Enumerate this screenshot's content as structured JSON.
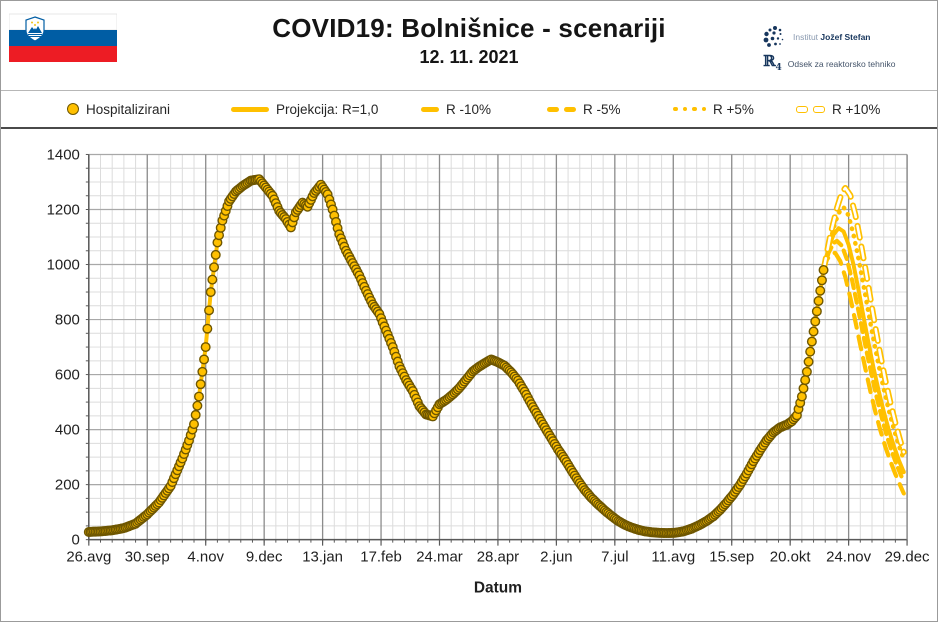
{
  "header": {
    "title": "COVID19: Bolnišnice - scenariji",
    "date": "12. 11. 2021",
    "logo": {
      "institute_light": "Institut",
      "institute_bold": "Jožef Stefan",
      "mark_r": "ℝ",
      "mark_sub": "4",
      "department": "Odsek za reaktorsko tehniko"
    },
    "flag_country": "Slovenia"
  },
  "legend": [
    {
      "label": "Hospitalizirani",
      "swatch": "circle"
    },
    {
      "label": "Projekcija: R=1,0",
      "swatch": "solid"
    },
    {
      "label": "R -10%",
      "swatch": "dash-long"
    },
    {
      "label": "R -5%",
      "swatch": "dash"
    },
    {
      "label": "R +5%",
      "swatch": "dot"
    },
    {
      "label": "R +10%",
      "swatch": "hollow-dash"
    }
  ],
  "colors": {
    "accent": "#FFC000",
    "marker_outline": "#6e5600",
    "grid_minor": "#dcdcdc",
    "grid_major_h": "#a8a8a8",
    "grid_major_v": "#8c8c8c",
    "axis": "#595959",
    "text": "#1f1f1f",
    "flag_blue": "#005da4",
    "flag_red": "#ed1c24",
    "logo_navy": "#17365d"
  },
  "chart_data": {
    "type": "scatter",
    "title": "COVID19: Bolnišnice - scenariji",
    "subtitle": "12. 11. 2021",
    "xlabel": "Datum",
    "ylabel": "",
    "ylim": [
      0,
      1400
    ],
    "y_major_step": 200,
    "y_minor_step": 50,
    "xlim_days": [
      0,
      490
    ],
    "x_minor_step_days": 7,
    "x_tick_days": [
      0,
      35,
      70,
      105,
      140,
      175,
      210,
      245,
      280,
      315,
      350,
      385,
      420,
      455,
      490
    ],
    "x_tick_labels": [
      "26.avg",
      "30.sep",
      "4.nov",
      "9.dec",
      "13.jan",
      "17.feb",
      "24.mar",
      "28.apr",
      "2.jun",
      "7.jul",
      "11.avg",
      "15.sep",
      "20.okt",
      "24.nov",
      "29.dec"
    ],
    "grid": true,
    "legend_position": "top",
    "series": [
      {
        "name": "Hospitalizirani",
        "style": "markers",
        "color": "#FFC000",
        "points": [
          [
            0,
            28
          ],
          [
            7,
            30
          ],
          [
            14,
            34
          ],
          [
            21,
            42
          ],
          [
            28,
            58
          ],
          [
            35,
            92
          ],
          [
            42,
            135
          ],
          [
            49,
            195
          ],
          [
            56,
            295
          ],
          [
            60,
            360
          ],
          [
            63,
            420
          ],
          [
            66,
            520
          ],
          [
            70,
            700
          ],
          [
            73,
            900
          ],
          [
            77,
            1080
          ],
          [
            80,
            1160
          ],
          [
            84,
            1230
          ],
          [
            88,
            1265
          ],
          [
            92,
            1285
          ],
          [
            97,
            1305
          ],
          [
            102,
            1310
          ],
          [
            106,
            1280
          ],
          [
            110,
            1250
          ],
          [
            114,
            1195
          ],
          [
            118,
            1165
          ],
          [
            121,
            1135
          ],
          [
            124,
            1190
          ],
          [
            128,
            1225
          ],
          [
            131,
            1210
          ],
          [
            135,
            1260
          ],
          [
            139,
            1290
          ],
          [
            143,
            1255
          ],
          [
            146,
            1200
          ],
          [
            150,
            1110
          ],
          [
            154,
            1050
          ],
          [
            158,
            1005
          ],
          [
            162,
            960
          ],
          [
            166,
            905
          ],
          [
            170,
            855
          ],
          [
            174,
            820
          ],
          [
            178,
            760
          ],
          [
            182,
            700
          ],
          [
            186,
            630
          ],
          [
            190,
            580
          ],
          [
            194,
            540
          ],
          [
            198,
            485
          ],
          [
            202,
            455
          ],
          [
            206,
            448
          ],
          [
            210,
            492
          ],
          [
            214,
            508
          ],
          [
            218,
            528
          ],
          [
            222,
            552
          ],
          [
            226,
            582
          ],
          [
            230,
            612
          ],
          [
            234,
            630
          ],
          [
            238,
            645
          ],
          [
            241,
            655
          ],
          [
            245,
            645
          ],
          [
            249,
            632
          ],
          [
            253,
            608
          ],
          [
            257,
            578
          ],
          [
            261,
            538
          ],
          [
            265,
            492
          ],
          [
            269,
            450
          ],
          [
            273,
            408
          ],
          [
            277,
            368
          ],
          [
            281,
            328
          ],
          [
            285,
            292
          ],
          [
            289,
            252
          ],
          [
            293,
            214
          ],
          [
            297,
            180
          ],
          [
            301,
            152
          ],
          [
            305,
            128
          ],
          [
            309,
            106
          ],
          [
            313,
            86
          ],
          [
            317,
            68
          ],
          [
            321,
            54
          ],
          [
            325,
            44
          ],
          [
            329,
            36
          ],
          [
            333,
            30
          ],
          [
            337,
            27
          ],
          [
            341,
            25
          ],
          [
            346,
            24
          ],
          [
            351,
            25
          ],
          [
            356,
            30
          ],
          [
            361,
            40
          ],
          [
            366,
            54
          ],
          [
            370,
            68
          ],
          [
            374,
            85
          ],
          [
            378,
            108
          ],
          [
            382,
            135
          ],
          [
            386,
            165
          ],
          [
            390,
            200
          ],
          [
            394,
            240
          ],
          [
            398,
            285
          ],
          [
            402,
            325
          ],
          [
            406,
            362
          ],
          [
            410,
            390
          ],
          [
            414,
            408
          ],
          [
            418,
            418
          ],
          [
            421,
            430
          ],
          [
            424,
            452
          ],
          [
            427,
            520
          ],
          [
            430,
            610
          ],
          [
            433,
            720
          ],
          [
            436,
            830
          ],
          [
            438,
            905
          ],
          [
            440,
            980
          ]
        ]
      },
      {
        "name": "Projekcija: R=1,0",
        "style": "solid",
        "color": "#FFC000",
        "includes_history_fit": true,
        "points": [
          [
            440,
            980
          ],
          [
            443,
            1060
          ],
          [
            446,
            1110
          ],
          [
            449,
            1132
          ],
          [
            452,
            1120
          ],
          [
            455,
            1072
          ],
          [
            458,
            998
          ],
          [
            461,
            905
          ],
          [
            464,
            808
          ],
          [
            467,
            712
          ],
          [
            470,
            622
          ],
          [
            473,
            540
          ],
          [
            476,
            466
          ],
          [
            479,
            400
          ],
          [
            482,
            342
          ],
          [
            485,
            290
          ],
          [
            488,
            245
          ]
        ]
      },
      {
        "name": "R -10%",
        "style": "dash-long",
        "color": "#FFC000",
        "points": [
          [
            440,
            980
          ],
          [
            442,
            1018
          ],
          [
            445,
            1042
          ],
          [
            447,
            1042
          ],
          [
            450,
            1012
          ],
          [
            453,
            955
          ],
          [
            456,
            880
          ],
          [
            459,
            795
          ],
          [
            462,
            708
          ],
          [
            465,
            622
          ],
          [
            468,
            540
          ],
          [
            471,
            465
          ],
          [
            474,
            398
          ],
          [
            477,
            338
          ],
          [
            480,
            285
          ],
          [
            483,
            238
          ],
          [
            486,
            196
          ],
          [
            488,
            168
          ]
        ]
      },
      {
        "name": "R -5%",
        "style": "dash",
        "color": "#FFC000",
        "points": [
          [
            440,
            980
          ],
          [
            443,
            1042
          ],
          [
            446,
            1078
          ],
          [
            448,
            1086
          ],
          [
            451,
            1068
          ],
          [
            454,
            1018
          ],
          [
            457,
            945
          ],
          [
            460,
            858
          ],
          [
            463,
            768
          ],
          [
            466,
            678
          ],
          [
            469,
            592
          ],
          [
            472,
            512
          ],
          [
            475,
            440
          ],
          [
            478,
            375
          ],
          [
            481,
            318
          ],
          [
            484,
            268
          ],
          [
            487,
            224
          ],
          [
            488,
            210
          ]
        ]
      },
      {
        "name": "R +5%",
        "style": "dot",
        "color": "#FFC000",
        "points": [
          [
            440,
            980
          ],
          [
            444,
            1085
          ],
          [
            447,
            1155
          ],
          [
            450,
            1198
          ],
          [
            452,
            1208
          ],
          [
            455,
            1178
          ],
          [
            458,
            1108
          ],
          [
            461,
            1018
          ],
          [
            464,
            922
          ],
          [
            467,
            822
          ],
          [
            470,
            725
          ],
          [
            473,
            633
          ],
          [
            476,
            548
          ],
          [
            479,
            472
          ],
          [
            482,
            404
          ],
          [
            485,
            344
          ],
          [
            488,
            292
          ]
        ]
      },
      {
        "name": "R +10%",
        "style": "hollow-dash",
        "color": "#FFC000",
        "points": [
          [
            440,
            980
          ],
          [
            444,
            1105
          ],
          [
            448,
            1205
          ],
          [
            451,
            1262
          ],
          [
            453,
            1278
          ],
          [
            456,
            1252
          ],
          [
            459,
            1182
          ],
          [
            462,
            1088
          ],
          [
            465,
            985
          ],
          [
            468,
            878
          ],
          [
            471,
            772
          ],
          [
            474,
            672
          ],
          [
            477,
            580
          ],
          [
            480,
            498
          ],
          [
            483,
            424
          ],
          [
            486,
            358
          ],
          [
            488,
            318
          ]
        ]
      }
    ]
  }
}
